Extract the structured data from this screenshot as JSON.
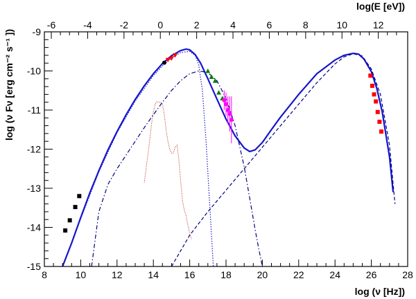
{
  "chart_data": {
    "type": "line",
    "title": "",
    "xlabel": "log (ν [Hz])",
    "ylabel": "log (ν Fν [erg cm⁻² s⁻¹ ])",
    "x2label": "log(E [eV])",
    "xlim": [
      8,
      28
    ],
    "ylim": [
      -15,
      -9
    ],
    "x2lim": [
      -6,
      13
    ],
    "xticks": [
      8,
      10,
      12,
      14,
      16,
      18,
      20,
      22,
      24,
      26,
      28
    ],
    "yticks": [
      -15,
      -14,
      -13,
      -12,
      -11,
      -10,
      -9
    ],
    "x2ticks": [
      -6,
      -4,
      -2,
      0,
      2,
      4,
      6,
      8,
      10,
      12
    ],
    "grid": false,
    "legend": "none",
    "colors": {
      "model": "#1515cc",
      "components": "#000080",
      "optical": "#b03020",
      "radio": "#000000",
      "uv": "#ff0000",
      "xray_green": "#008000",
      "xray_magenta": "#ff00ff",
      "tev": "#ff0000"
    },
    "series": [
      {
        "style": "solid-thick",
        "x": [
          9.0,
          9.5,
          10.0,
          10.5,
          11.0,
          11.5,
          12.0,
          12.5,
          13.0,
          13.5,
          14.0,
          14.5,
          15.0,
          15.5,
          15.8,
          16.0,
          16.3,
          16.6,
          17.0,
          17.5,
          18.0,
          18.5,
          19.0,
          19.3,
          19.6,
          20.0,
          20.5,
          21.0,
          22.0,
          23.0,
          24.0,
          24.5,
          25.0,
          25.3,
          25.6,
          26.0,
          26.3,
          26.6,
          27.0,
          27.2
        ],
        "y": [
          -15.0,
          -14.4,
          -13.75,
          -13.12,
          -12.55,
          -12.02,
          -11.55,
          -11.12,
          -10.73,
          -10.38,
          -10.07,
          -9.81,
          -9.61,
          -9.48,
          -9.44,
          -9.46,
          -9.58,
          -9.8,
          -10.2,
          -10.72,
          -11.23,
          -11.66,
          -11.97,
          -12.06,
          -12.02,
          -11.83,
          -11.5,
          -11.18,
          -10.6,
          -10.07,
          -9.72,
          -9.6,
          -9.55,
          -9.57,
          -9.7,
          -10.02,
          -10.45,
          -11.05,
          -12.2,
          -13.1
        ]
      },
      {
        "style": "dotted",
        "x": [
          9.0,
          10.0,
          11.0,
          12.0,
          13.0,
          14.0,
          14.5,
          15.0,
          15.5,
          16.0,
          16.3,
          16.5,
          16.7,
          16.9,
          17.1,
          17.3
        ],
        "y": [
          -15.0,
          -13.78,
          -12.58,
          -11.58,
          -10.77,
          -10.12,
          -9.87,
          -9.67,
          -9.53,
          -9.5,
          -9.6,
          -9.85,
          -10.5,
          -11.8,
          -13.4,
          -15.0
        ]
      },
      {
        "style": "dash-dot",
        "x": [
          10.6,
          11.0,
          11.5,
          12.0,
          12.5,
          13.0,
          13.5,
          14.0,
          14.5,
          15.0,
          15.5,
          16.0,
          16.5,
          17.0,
          17.5,
          18.0,
          18.5,
          19.0,
          19.3,
          19.6,
          19.8,
          20.0
        ],
        "y": [
          -15.0,
          -13.6,
          -12.9,
          -12.5,
          -12.15,
          -11.8,
          -11.45,
          -11.12,
          -10.8,
          -10.5,
          -10.25,
          -10.07,
          -10.0,
          -10.04,
          -10.25,
          -10.7,
          -11.4,
          -12.45,
          -13.25,
          -14.05,
          -14.55,
          -15.0
        ]
      },
      {
        "style": "dashed",
        "x": [
          15.0,
          16.0,
          17.0,
          18.0,
          19.0,
          20.0,
          21.0,
          22.0,
          23.0,
          24.0,
          24.5,
          25.0,
          25.5,
          26.0,
          26.5,
          27.0,
          27.3
        ],
        "y": [
          -15.0,
          -14.2,
          -13.6,
          -13.05,
          -12.5,
          -11.95,
          -11.4,
          -10.85,
          -10.3,
          -9.82,
          -9.64,
          -9.56,
          -9.62,
          -9.95,
          -10.6,
          -11.9,
          -13.4
        ]
      }
    ],
    "optical_host": {
      "x": [
        13.5,
        13.6,
        13.7,
        13.8,
        13.9,
        14.0,
        14.1,
        14.2,
        14.3,
        14.4,
        14.5,
        14.6,
        14.7,
        14.8,
        14.9,
        15.0,
        15.1,
        15.2,
        15.3,
        15.4,
        15.5,
        15.6,
        15.7,
        15.8,
        15.9,
        16.0,
        16.1
      ],
      "y": [
        -12.85,
        -12.5,
        -12.15,
        -11.75,
        -11.35,
        -11.05,
        -10.85,
        -10.78,
        -10.8,
        -10.8,
        -10.85,
        -11.1,
        -11.5,
        -11.8,
        -12.0,
        -12.1,
        -12.1,
        -11.95,
        -11.9,
        -12.25,
        -12.8,
        -13.3,
        -13.55,
        -13.7,
        -13.95,
        -14.15,
        -14.3
      ]
    },
    "points": [
      {
        "label": "radio",
        "marker": "square",
        "x": [
          9.15,
          9.4,
          9.7,
          9.92
        ],
        "y": [
          -14.08,
          -13.82,
          -13.48,
          -13.2
        ]
      },
      {
        "label": "optical",
        "marker": "circle",
        "x": [
          14.6
        ],
        "y": [
          -9.79
        ]
      },
      {
        "label": "uv",
        "marker": "triangle-down",
        "x": [
          14.8,
          15.0,
          15.2
        ],
        "y": [
          -9.72,
          -9.68,
          -9.6
        ]
      },
      {
        "label": "xray-green",
        "marker": "triangle-up",
        "x": [
          17.0,
          17.2,
          17.4,
          17.6,
          17.8
        ],
        "y": [
          -10.0,
          -10.15,
          -10.25,
          -10.55,
          -10.7
        ]
      },
      {
        "label": "xray-magenta",
        "marker": "circle",
        "x": [
          17.9,
          18.0,
          18.1,
          18.2,
          18.3
        ],
        "y": [
          -10.75,
          -10.85,
          -11.0,
          -11.1,
          -11.25
        ],
        "yerr": [
          0.25,
          0.3,
          0.35,
          0.45,
          0.6
        ]
      },
      {
        "label": "tev",
        "marker": "square",
        "x": [
          25.95,
          26.05,
          26.15,
          26.25,
          26.35,
          26.45,
          26.55
        ],
        "y": [
          -10.12,
          -10.38,
          -10.6,
          -10.78,
          -11.05,
          -11.3,
          -11.55
        ]
      }
    ]
  }
}
